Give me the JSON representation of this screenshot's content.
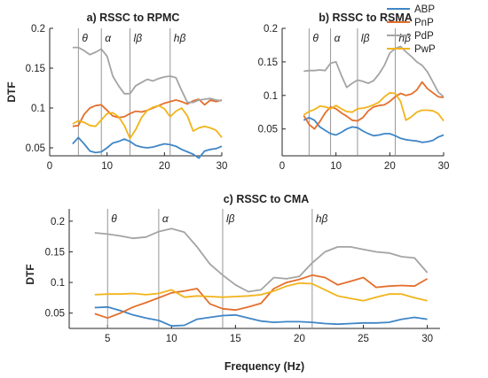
{
  "legend": {
    "entries": [
      {
        "label": "ABP",
        "color": "#3f86c6"
      },
      {
        "label": "PnP",
        "color": "#e46f2c"
      },
      {
        "label": "PdP",
        "color": "#a4a4a4"
      },
      {
        "label": "PwP",
        "color": "#f2b41b"
      }
    ]
  },
  "chart_data": [
    {
      "type": "line",
      "title": "a) RSSC to RPMC",
      "xlabel": "",
      "ylabel": "DTF",
      "xlim": [
        0,
        30
      ],
      "ylim": [
        0.04,
        0.2
      ],
      "xticks": [
        0,
        10,
        20,
        30
      ],
      "yticks": [
        0.05,
        0.1,
        0.15,
        0.2
      ],
      "ytick_labels": [
        "0.05",
        "0.1",
        "0.15",
        "0.2"
      ],
      "bands": [
        {
          "label": "θ",
          "x": 5
        },
        {
          "label": "α",
          "x": 9
        },
        {
          "label": "lβ",
          "x": 14
        },
        {
          "label": "hβ",
          "x": 21
        }
      ],
      "x": [
        4,
        5,
        6,
        7,
        8,
        9,
        10,
        11,
        12,
        13,
        14,
        15,
        16,
        17,
        18,
        19,
        20,
        21,
        22,
        23,
        24,
        25,
        26,
        27,
        28,
        29,
        30
      ],
      "series": [
        {
          "name": "ABP",
          "color": "#3f86c6",
          "values": [
            0.055,
            0.063,
            0.055,
            0.046,
            0.044,
            0.045,
            0.05,
            0.056,
            0.058,
            0.061,
            0.058,
            0.053,
            0.051,
            0.05,
            0.051,
            0.053,
            0.055,
            0.054,
            0.052,
            0.048,
            0.045,
            0.042,
            0.037,
            0.046,
            0.048,
            0.049,
            0.052
          ]
        },
        {
          "name": "PnP",
          "color": "#e46f2c",
          "values": [
            0.077,
            0.078,
            0.092,
            0.1,
            0.103,
            0.104,
            0.097,
            0.09,
            0.088,
            0.089,
            0.093,
            0.096,
            0.095,
            0.097,
            0.1,
            0.103,
            0.106,
            0.108,
            0.11,
            0.108,
            0.105,
            0.109,
            0.111,
            0.104,
            0.11,
            0.108,
            0.11
          ]
        },
        {
          "name": "PdP",
          "color": "#a4a4a4",
          "values": [
            0.176,
            0.176,
            0.172,
            0.167,
            0.17,
            0.174,
            0.165,
            0.14,
            0.128,
            0.118,
            0.118,
            0.128,
            0.132,
            0.136,
            0.134,
            0.137,
            0.139,
            0.14,
            0.138,
            0.122,
            0.107,
            0.107,
            0.11,
            0.111,
            0.112,
            0.11,
            0.109
          ]
        },
        {
          "name": "PwP",
          "color": "#f2b41b",
          "values": [
            0.08,
            0.084,
            0.082,
            0.078,
            0.077,
            0.085,
            0.093,
            0.094,
            0.089,
            0.078,
            0.062,
            0.073,
            0.088,
            0.097,
            0.101,
            0.103,
            0.099,
            0.089,
            0.096,
            0.1,
            0.09,
            0.071,
            0.075,
            0.077,
            0.075,
            0.072,
            0.063
          ]
        }
      ]
    },
    {
      "type": "line",
      "title": "b) RSSC to RSMA",
      "xlabel": "",
      "ylabel": "",
      "xlim": [
        0,
        30
      ],
      "ylim": [
        0.01,
        0.2
      ],
      "xticks": [
        0,
        10,
        20,
        30
      ],
      "yticks": [
        0.05,
        0.1,
        0.15,
        0.2
      ],
      "ytick_labels": [
        "0.05",
        "0.1",
        "0.15",
        "0.2"
      ],
      "bands": [
        {
          "label": "θ",
          "x": 5
        },
        {
          "label": "α",
          "x": 9
        },
        {
          "label": "lβ",
          "x": 14
        },
        {
          "label": "hβ",
          "x": 21
        }
      ],
      "x": [
        4,
        5,
        6,
        7,
        8,
        9,
        10,
        11,
        12,
        13,
        14,
        15,
        16,
        17,
        18,
        19,
        20,
        21,
        22,
        23,
        24,
        25,
        26,
        27,
        28,
        29,
        30
      ],
      "series": [
        {
          "name": "ABP",
          "color": "#3f86c6",
          "values": [
            0.063,
            0.067,
            0.063,
            0.053,
            0.048,
            0.043,
            0.041,
            0.045,
            0.05,
            0.053,
            0.052,
            0.047,
            0.043,
            0.04,
            0.041,
            0.043,
            0.043,
            0.04,
            0.036,
            0.034,
            0.033,
            0.032,
            0.03,
            0.031,
            0.033,
            0.038,
            0.041
          ]
        },
        {
          "name": "PnP",
          "color": "#e46f2c",
          "values": [
            0.07,
            0.057,
            0.05,
            0.061,
            0.074,
            0.083,
            0.08,
            0.074,
            0.069,
            0.063,
            0.062,
            0.067,
            0.077,
            0.083,
            0.085,
            0.086,
            0.091,
            0.098,
            0.103,
            0.1,
            0.102,
            0.108,
            0.12,
            0.11,
            0.104,
            0.098,
            0.097
          ]
        },
        {
          "name": "PdP",
          "color": "#a4a4a4",
          "values": [
            0.136,
            0.137,
            0.137,
            0.138,
            0.137,
            0.148,
            0.15,
            0.13,
            0.112,
            0.118,
            0.123,
            0.121,
            0.118,
            0.122,
            0.132,
            0.145,
            0.163,
            0.17,
            0.173,
            0.165,
            0.158,
            0.15,
            0.145,
            0.135,
            0.12,
            0.105,
            0.098
          ]
        },
        {
          "name": "PwP",
          "color": "#f2b41b",
          "values": [
            0.071,
            0.076,
            0.079,
            0.084,
            0.083,
            0.08,
            0.085,
            0.08,
            0.076,
            0.075,
            0.08,
            0.081,
            0.083,
            0.086,
            0.09,
            0.098,
            0.104,
            0.103,
            0.091,
            0.063,
            0.068,
            0.075,
            0.078,
            0.078,
            0.077,
            0.073,
            0.062
          ]
        }
      ]
    },
    {
      "type": "line",
      "title": "c) RSSC to CMA",
      "xlabel": "Frequency (Hz)",
      "ylabel": "DTF",
      "xlim": [
        2,
        31
      ],
      "ylim": [
        0.025,
        0.22
      ],
      "xticks": [
        5,
        10,
        15,
        20,
        25,
        30
      ],
      "yticks": [
        0.05,
        0.1,
        0.15,
        0.2
      ],
      "ytick_labels": [
        "0.05",
        "0.1",
        "0.15",
        "0.2"
      ],
      "bands": [
        {
          "label": "θ",
          "x": 5
        },
        {
          "label": "α",
          "x": 9
        },
        {
          "label": "lβ",
          "x": 14
        },
        {
          "label": "hβ",
          "x": 21
        }
      ],
      "x": [
        4,
        5,
        6,
        7,
        8,
        9,
        10,
        11,
        12,
        13,
        14,
        15,
        16,
        17,
        18,
        19,
        20,
        21,
        22,
        23,
        24,
        25,
        26,
        27,
        28,
        29,
        30
      ],
      "series": [
        {
          "name": "ABP",
          "color": "#3f86c6",
          "values": [
            0.059,
            0.06,
            0.054,
            0.047,
            0.042,
            0.038,
            0.029,
            0.03,
            0.04,
            0.043,
            0.046,
            0.047,
            0.042,
            0.037,
            0.035,
            0.036,
            0.036,
            0.035,
            0.033,
            0.032,
            0.033,
            0.034,
            0.034,
            0.035,
            0.04,
            0.043,
            0.04
          ]
        },
        {
          "name": "PnP",
          "color": "#e46f2c",
          "values": [
            0.049,
            0.042,
            0.05,
            0.06,
            0.067,
            0.075,
            0.083,
            0.086,
            0.09,
            0.065,
            0.057,
            0.055,
            0.06,
            0.066,
            0.09,
            0.1,
            0.105,
            0.112,
            0.108,
            0.096,
            0.102,
            0.108,
            0.092,
            0.094,
            0.095,
            0.094,
            0.106
          ]
        },
        {
          "name": "PdP",
          "color": "#a4a4a4",
          "values": [
            0.181,
            0.179,
            0.176,
            0.172,
            0.174,
            0.183,
            0.188,
            0.182,
            0.158,
            0.13,
            0.112,
            0.096,
            0.085,
            0.088,
            0.108,
            0.106,
            0.11,
            0.132,
            0.15,
            0.158,
            0.158,
            0.154,
            0.15,
            0.148,
            0.142,
            0.14,
            0.116
          ]
        },
        {
          "name": "PwP",
          "color": "#f2b41b",
          "values": [
            0.08,
            0.081,
            0.081,
            0.082,
            0.08,
            0.082,
            0.088,
            0.076,
            0.078,
            0.077,
            0.076,
            0.077,
            0.078,
            0.08,
            0.086,
            0.094,
            0.099,
            0.098,
            0.088,
            0.078,
            0.074,
            0.07,
            0.076,
            0.081,
            0.081,
            0.075,
            0.07
          ]
        }
      ]
    }
  ]
}
